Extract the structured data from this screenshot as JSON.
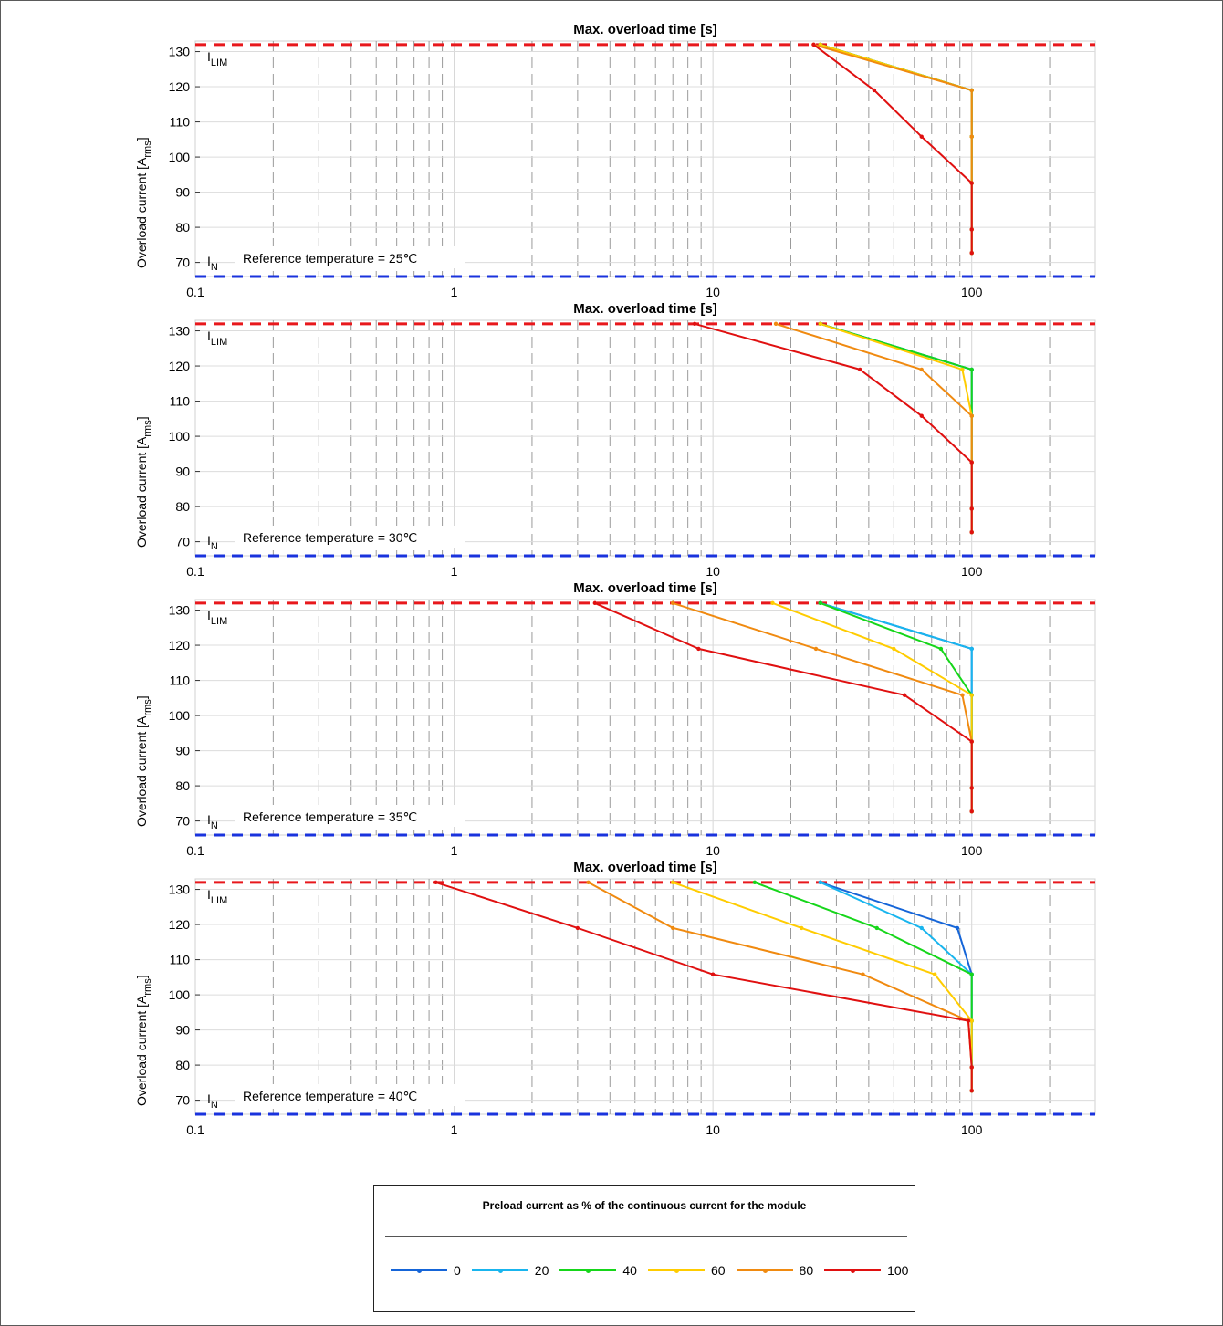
{
  "chart_data": [
    {
      "type": "line",
      "title": "Max. overload time [s]",
      "ylabel": "Overload current [A_rms]",
      "x_scale": "log",
      "xlim": [
        0.1,
        300
      ],
      "ylim": [
        66,
        133
      ],
      "x_tick_labels": [
        "0.1",
        "1",
        "10",
        "100"
      ],
      "y_tick_labels": [
        "70",
        "80",
        "90",
        "100",
        "110",
        "120",
        "130"
      ],
      "grid": true,
      "annotation": "Reference temperature = 25℃",
      "ref_lines": [
        {
          "name": "ILIM",
          "y": 132,
          "color": "#e8181c"
        },
        {
          "name": "IN",
          "y": 66,
          "color": "#1a33dd"
        }
      ],
      "series": [
        {
          "name": "0",
          "color": "#1565d8",
          "x": [
            26,
            100,
            100,
            100,
            100,
            100
          ],
          "y": [
            132,
            119,
            105.8,
            92.6,
            79.4,
            72.7
          ]
        },
        {
          "name": "20",
          "color": "#19b5ee",
          "x": [
            26,
            100,
            100,
            100,
            100,
            100
          ],
          "y": [
            132,
            119,
            105.8,
            92.6,
            79.4,
            72.7
          ]
        },
        {
          "name": "40",
          "color": "#16d61a",
          "x": [
            26,
            100,
            100,
            100,
            100,
            100
          ],
          "y": [
            132,
            119,
            105.8,
            92.6,
            79.4,
            72.7
          ]
        },
        {
          "name": "60",
          "color": "#ffcc00",
          "x": [
            26,
            100,
            100,
            100,
            100,
            100
          ],
          "y": [
            132,
            119,
            105.8,
            92.6,
            79.4,
            72.7
          ]
        },
        {
          "name": "80",
          "color": "#f08a10",
          "x": [
            24.5,
            100,
            100,
            100,
            100,
            100
          ],
          "y": [
            132,
            119,
            105.8,
            92.6,
            79.4,
            72.7
          ]
        },
        {
          "name": "100",
          "color": "#e01010",
          "x": [
            24.5,
            42,
            64,
            100,
            100,
            100
          ],
          "y": [
            132,
            119,
            105.8,
            92.6,
            79.4,
            72.7
          ]
        }
      ]
    },
    {
      "type": "line",
      "title": "Max. overload time [s]",
      "ylabel": "Overload current [A_rms]",
      "x_scale": "log",
      "xlim": [
        0.1,
        300
      ],
      "ylim": [
        66,
        133
      ],
      "x_tick_labels": [
        "0.1",
        "1",
        "10",
        "100"
      ],
      "y_tick_labels": [
        "70",
        "80",
        "90",
        "100",
        "110",
        "120",
        "130"
      ],
      "grid": true,
      "annotation": "Reference temperature = 30℃",
      "ref_lines": [
        {
          "name": "ILIM",
          "y": 132,
          "color": "#e8181c"
        },
        {
          "name": "IN",
          "y": 66,
          "color": "#1a33dd"
        }
      ],
      "series": [
        {
          "name": "0",
          "color": "#1565d8",
          "x": [
            26,
            100,
            100,
            100,
            100,
            100
          ],
          "y": [
            132,
            119,
            105.8,
            92.6,
            79.4,
            72.7
          ]
        },
        {
          "name": "20",
          "color": "#19b5ee",
          "x": [
            26,
            100,
            100,
            100,
            100,
            100
          ],
          "y": [
            132,
            119,
            105.8,
            92.6,
            79.4,
            72.7
          ]
        },
        {
          "name": "40",
          "color": "#16d61a",
          "x": [
            26,
            100,
            100,
            100,
            100,
            100
          ],
          "y": [
            132,
            119,
            105.8,
            92.6,
            79.4,
            72.7
          ]
        },
        {
          "name": "60",
          "color": "#ffcc00",
          "x": [
            26,
            92,
            100,
            100,
            100,
            100
          ],
          "y": [
            132,
            119,
            105.8,
            92.6,
            79.4,
            72.7
          ]
        },
        {
          "name": "80",
          "color": "#f08a10",
          "x": [
            17.5,
            64,
            100,
            100,
            100,
            100
          ],
          "y": [
            132,
            119,
            105.8,
            92.6,
            79.4,
            72.7
          ]
        },
        {
          "name": "100",
          "color": "#e01010",
          "x": [
            8.5,
            37,
            64,
            100,
            100,
            100
          ],
          "y": [
            132,
            119,
            105.8,
            92.6,
            79.4,
            72.7
          ]
        }
      ]
    },
    {
      "type": "line",
      "title": "Max. overload time [s]",
      "ylabel": "Overload current [A_rms]",
      "x_scale": "log",
      "xlim": [
        0.1,
        300
      ],
      "ylim": [
        66,
        133
      ],
      "x_tick_labels": [
        "0.1",
        "1",
        "10",
        "100"
      ],
      "y_tick_labels": [
        "70",
        "80",
        "90",
        "100",
        "110",
        "120",
        "130"
      ],
      "grid": true,
      "annotation": "Reference temperature = 35℃",
      "ref_lines": [
        {
          "name": "ILIM",
          "y": 132,
          "color": "#e8181c"
        },
        {
          "name": "IN",
          "y": 66,
          "color": "#1a33dd"
        }
      ],
      "series": [
        {
          "name": "0",
          "color": "#1565d8",
          "x": [
            26,
            100,
            100,
            100,
            100,
            100
          ],
          "y": [
            132,
            119,
            105.8,
            92.6,
            79.4,
            72.7
          ]
        },
        {
          "name": "20",
          "color": "#19b5ee",
          "x": [
            26,
            100,
            100,
            100,
            100,
            100
          ],
          "y": [
            132,
            119,
            105.8,
            92.6,
            79.4,
            72.7
          ]
        },
        {
          "name": "40",
          "color": "#16d61a",
          "x": [
            26,
            76,
            100,
            100,
            100,
            100
          ],
          "y": [
            132,
            119,
            105.8,
            92.6,
            79.4,
            72.7
          ]
        },
        {
          "name": "60",
          "color": "#ffcc00",
          "x": [
            17,
            50,
            100,
            100,
            100,
            100
          ],
          "y": [
            132,
            119,
            105.8,
            92.6,
            79.4,
            72.7
          ]
        },
        {
          "name": "80",
          "color": "#f08a10",
          "x": [
            7,
            25,
            92,
            100,
            100,
            100
          ],
          "y": [
            132,
            119,
            105.8,
            92.6,
            79.4,
            72.7
          ]
        },
        {
          "name": "100",
          "color": "#e01010",
          "x": [
            3.5,
            8.8,
            55,
            100,
            100,
            100
          ],
          "y": [
            132,
            119,
            105.8,
            92.6,
            79.4,
            72.7
          ]
        }
      ]
    },
    {
      "type": "line",
      "title": "Max. overload time [s]",
      "ylabel": "Overload current [A_rms]",
      "x_scale": "log",
      "xlim": [
        0.1,
        300
      ],
      "ylim": [
        66,
        133
      ],
      "x_tick_labels": [
        "0.1",
        "1",
        "10",
        "100"
      ],
      "y_tick_labels": [
        "70",
        "80",
        "90",
        "100",
        "110",
        "120",
        "130"
      ],
      "grid": true,
      "annotation": "Reference temperature = 40℃",
      "ref_lines": [
        {
          "name": "ILIM",
          "y": 132,
          "color": "#e8181c"
        },
        {
          "name": "IN",
          "y": 66,
          "color": "#1a33dd"
        }
      ],
      "series": [
        {
          "name": "0",
          "color": "#1565d8",
          "x": [
            26,
            88,
            100,
            100,
            100,
            100
          ],
          "y": [
            132,
            119,
            105.8,
            92.6,
            79.4,
            72.7
          ]
        },
        {
          "name": "20",
          "color": "#19b5ee",
          "x": [
            26,
            64,
            100,
            100,
            100,
            100
          ],
          "y": [
            132,
            119,
            105.8,
            92.6,
            79.4,
            72.7
          ]
        },
        {
          "name": "40",
          "color": "#16d61a",
          "x": [
            14.5,
            43,
            100,
            100,
            100,
            100
          ],
          "y": [
            132,
            119,
            105.8,
            92.6,
            79.4,
            72.7
          ]
        },
        {
          "name": "60",
          "color": "#ffcc00",
          "x": [
            7,
            22,
            72,
            100,
            100,
            100
          ],
          "y": [
            132,
            119,
            105.8,
            92.6,
            79.4,
            72.7
          ]
        },
        {
          "name": "80",
          "color": "#f08a10",
          "x": [
            3.3,
            7,
            38,
            97,
            100,
            100
          ],
          "y": [
            132,
            119,
            105.8,
            92.6,
            79.4,
            72.7
          ]
        },
        {
          "name": "100",
          "color": "#e01010",
          "x": [
            0.85,
            3,
            10,
            97,
            100,
            100
          ],
          "y": [
            132,
            119,
            105.8,
            92.6,
            79.4,
            72.7
          ]
        }
      ]
    }
  ],
  "labels": {
    "ylabel_main": "Overload current [A",
    "ylabel_sub": "rms",
    "ylabel_end": "]",
    "ilim_main": "I",
    "ilim_sub": "LIM",
    "in_main": "I",
    "in_sub": "N"
  },
  "legend": {
    "title": "Preload current as % of the continuous current for the module",
    "items": [
      {
        "label": "0",
        "color": "#1565d8"
      },
      {
        "label": "20",
        "color": "#19b5ee"
      },
      {
        "label": "40",
        "color": "#16d61a"
      },
      {
        "label": "60",
        "color": "#ffcc00"
      },
      {
        "label": "80",
        "color": "#f08a10"
      },
      {
        "label": "100",
        "color": "#e01010"
      }
    ]
  }
}
